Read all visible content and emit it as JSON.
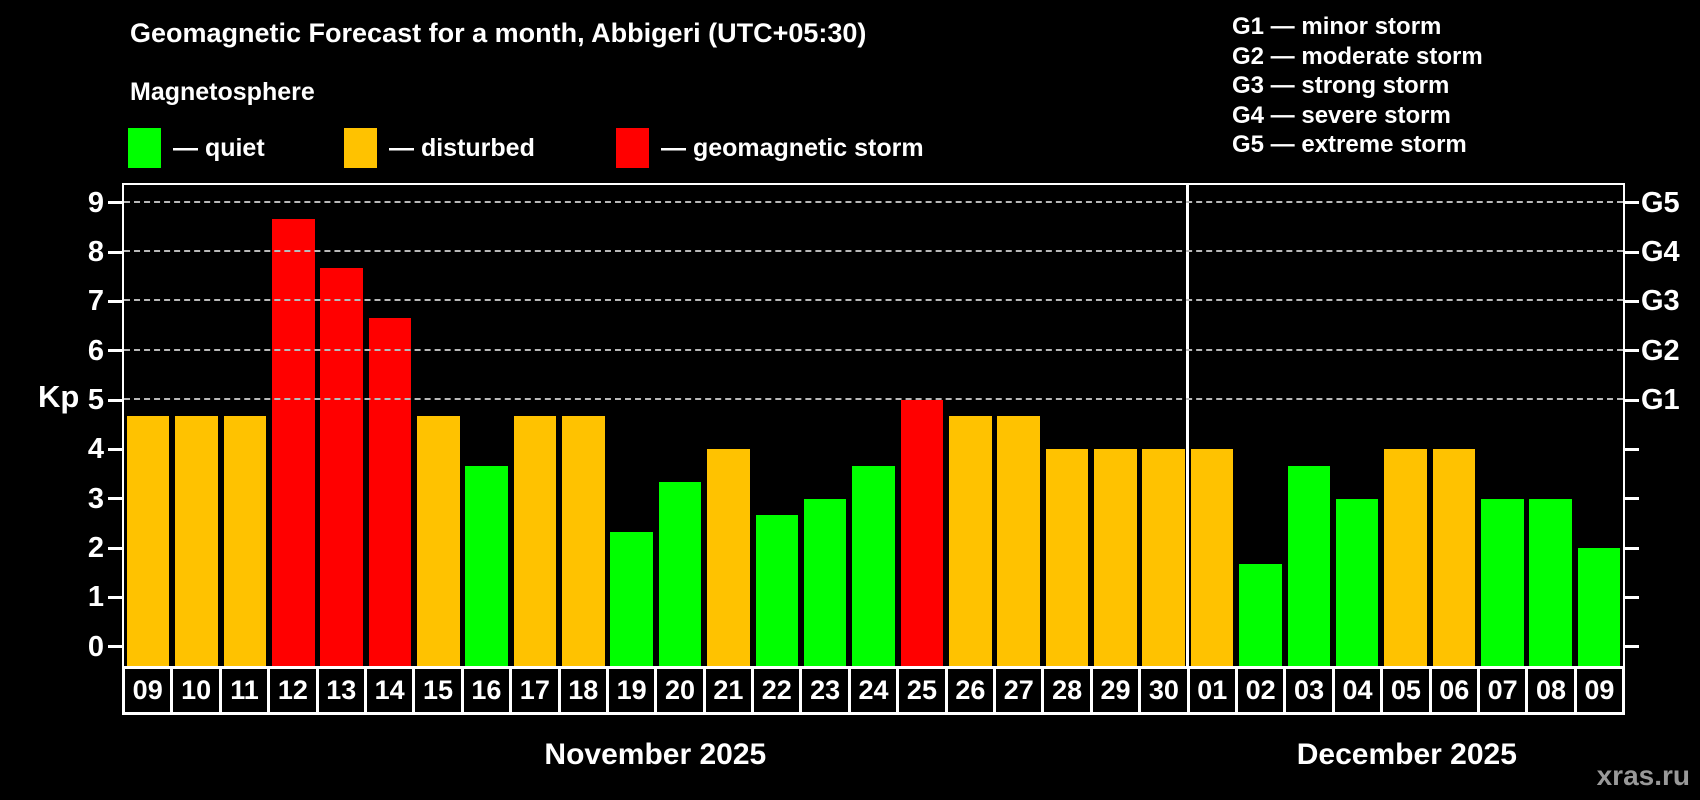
{
  "title": "Geomagnetic Forecast for a month, Abbigeri (UTC+05:30)",
  "subtitle": "Magnetosphere",
  "legend": {
    "items": [
      {
        "key": "quiet",
        "label": "— quiet",
        "color": "#00ff00"
      },
      {
        "key": "disturbed",
        "label": "— disturbed",
        "color": "#ffc200"
      },
      {
        "key": "storm",
        "label": "— geomagnetic storm",
        "color": "#ff0000"
      }
    ]
  },
  "g_legend": [
    "G1 — minor storm",
    "G2 — moderate storm",
    "G3 — strong storm",
    "G4 — severe storm",
    "G5 — extreme storm"
  ],
  "watermark": "xras.ru",
  "chart_data": {
    "type": "bar",
    "title": "Geomagnetic Forecast for a month, Abbigeri (UTC+05:30)",
    "xlabel": "",
    "ylabel": "Kp",
    "ylim": [
      -0.39,
      9.36
    ],
    "grid": "dashed horizontal at Kp 5..9",
    "legend_position": "top",
    "categories": [
      "09",
      "10",
      "11",
      "12",
      "13",
      "14",
      "15",
      "16",
      "17",
      "18",
      "19",
      "20",
      "21",
      "22",
      "23",
      "24",
      "25",
      "26",
      "27",
      "28",
      "29",
      "30",
      "01",
      "02",
      "03",
      "04",
      "05",
      "06",
      "07",
      "08",
      "09"
    ],
    "values": [
      4.67,
      4.67,
      4.67,
      8.67,
      7.67,
      6.67,
      4.67,
      3.67,
      4.67,
      4.67,
      2.33,
      3.33,
      4.0,
      2.67,
      3.0,
      3.67,
      5.0,
      4.67,
      4.67,
      4.0,
      4.0,
      4.0,
      4.0,
      1.67,
      3.67,
      3.0,
      4.0,
      4.0,
      3.0,
      3.0,
      2.0
    ],
    "statuses": [
      "disturbed",
      "disturbed",
      "disturbed",
      "storm",
      "storm",
      "storm",
      "disturbed",
      "quiet",
      "disturbed",
      "disturbed",
      "quiet",
      "quiet",
      "disturbed",
      "quiet",
      "quiet",
      "quiet",
      "storm",
      "disturbed",
      "disturbed",
      "disturbed",
      "disturbed",
      "disturbed",
      "disturbed",
      "quiet",
      "quiet",
      "quiet",
      "disturbed",
      "disturbed",
      "quiet",
      "quiet",
      "quiet"
    ],
    "palette": {
      "quiet": "#00ff00",
      "disturbed": "#ffc200",
      "storm": "#ff0000"
    },
    "months": [
      {
        "label": "November 2025",
        "days": 22
      },
      {
        "label": "December 2025",
        "days": 9
      }
    ],
    "y_ticks": [
      0,
      1,
      2,
      3,
      4,
      5,
      6,
      7,
      8,
      9
    ],
    "gridlines": [
      5,
      6,
      7,
      8,
      9
    ],
    "right_axis_labels": [
      {
        "value": 5,
        "label": "G1"
      },
      {
        "value": 6,
        "label": "G2"
      },
      {
        "value": 7,
        "label": "G3"
      },
      {
        "value": 8,
        "label": "G4"
      },
      {
        "value": 9,
        "label": "G5"
      }
    ]
  }
}
